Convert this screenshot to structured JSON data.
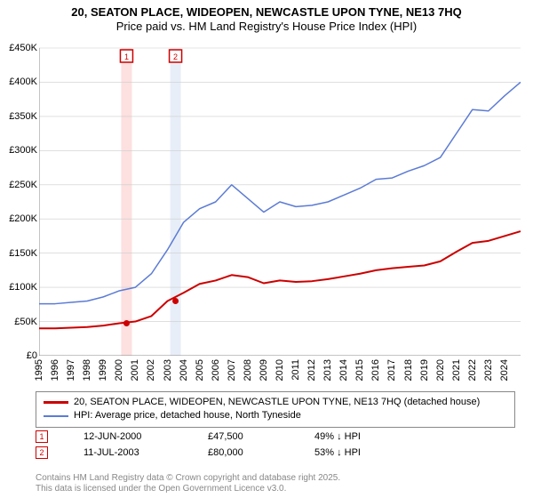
{
  "title_line1": "20, SEATON PLACE, WIDEOPEN, NEWCASTLE UPON TYNE, NE13 7HQ",
  "title_line2": "Price paid vs. HM Land Registry's House Price Index (HPI)",
  "chart": {
    "type": "line",
    "background_color": "#ffffff",
    "grid_color": "#cccccc",
    "axis_color": "#888888",
    "label_fontsize": 11,
    "title_fontsize": 13,
    "xlim": [
      1995,
      2025
    ],
    "ylim": [
      0,
      450000
    ],
    "ytick_step": 50000,
    "yticks": [
      "£0",
      "£50K",
      "£100K",
      "£150K",
      "£200K",
      "£250K",
      "£300K",
      "£350K",
      "£400K",
      "£450K"
    ],
    "xticks": [
      "1995",
      "1996",
      "1997",
      "1998",
      "1999",
      "2000",
      "2001",
      "2002",
      "2003",
      "2004",
      "2005",
      "2006",
      "2007",
      "2008",
      "2009",
      "2010",
      "2011",
      "2012",
      "2013",
      "2014",
      "2015",
      "2016",
      "2017",
      "2018",
      "2019",
      "2020",
      "2021",
      "2022",
      "2023",
      "2024"
    ],
    "series": [
      {
        "name": "property",
        "label": "20, SEATON PLACE, WIDEOPEN, NEWCASTLE UPON TYNE, NE13 7HQ (detached house)",
        "color": "#cc0000",
        "line_width": 2,
        "points": [
          [
            1995,
            40000
          ],
          [
            1996,
            40000
          ],
          [
            1997,
            41000
          ],
          [
            1998,
            42000
          ],
          [
            1999,
            44000
          ],
          [
            2000,
            47500
          ],
          [
            2001,
            50000
          ],
          [
            2002,
            58000
          ],
          [
            2003,
            80000
          ],
          [
            2004,
            92000
          ],
          [
            2005,
            105000
          ],
          [
            2006,
            110000
          ],
          [
            2007,
            118000
          ],
          [
            2008,
            115000
          ],
          [
            2009,
            106000
          ],
          [
            2010,
            110000
          ],
          [
            2011,
            108000
          ],
          [
            2012,
            109000
          ],
          [
            2013,
            112000
          ],
          [
            2014,
            116000
          ],
          [
            2015,
            120000
          ],
          [
            2016,
            125000
          ],
          [
            2017,
            128000
          ],
          [
            2018,
            130000
          ],
          [
            2019,
            132000
          ],
          [
            2020,
            138000
          ],
          [
            2021,
            152000
          ],
          [
            2022,
            165000
          ],
          [
            2023,
            168000
          ],
          [
            2024,
            175000
          ],
          [
            2025,
            182000
          ]
        ]
      },
      {
        "name": "hpi",
        "label": "HPI: Average price, detached house, North Tyneside",
        "color": "#5b7bd5",
        "line_width": 1.5,
        "points": [
          [
            1995,
            76000
          ],
          [
            1996,
            76000
          ],
          [
            1997,
            78000
          ],
          [
            1998,
            80000
          ],
          [
            1999,
            86000
          ],
          [
            2000,
            95000
          ],
          [
            2001,
            100000
          ],
          [
            2002,
            120000
          ],
          [
            2003,
            155000
          ],
          [
            2004,
            195000
          ],
          [
            2005,
            215000
          ],
          [
            2006,
            225000
          ],
          [
            2007,
            250000
          ],
          [
            2008,
            230000
          ],
          [
            2009,
            210000
          ],
          [
            2010,
            225000
          ],
          [
            2011,
            218000
          ],
          [
            2012,
            220000
          ],
          [
            2013,
            225000
          ],
          [
            2014,
            235000
          ],
          [
            2015,
            245000
          ],
          [
            2016,
            258000
          ],
          [
            2017,
            260000
          ],
          [
            2018,
            270000
          ],
          [
            2019,
            278000
          ],
          [
            2020,
            290000
          ],
          [
            2021,
            325000
          ],
          [
            2022,
            360000
          ],
          [
            2023,
            358000
          ],
          [
            2024,
            380000
          ],
          [
            2025,
            400000
          ]
        ]
      }
    ],
    "transaction_markers": [
      {
        "n": "1",
        "x": 2000.45,
        "y": 47500,
        "color": "#cc0000",
        "band_color": "#fde0e0"
      },
      {
        "n": "2",
        "x": 2003.5,
        "y": 80000,
        "color": "#cc0000",
        "band_color": "#e8eef8"
      }
    ]
  },
  "legend": {
    "series1_label": "20, SEATON PLACE, WIDEOPEN, NEWCASTLE UPON TYNE, NE13 7HQ (detached house)",
    "series2_label": "HPI: Average price, detached house, North Tyneside",
    "series1_color": "#cc0000",
    "series2_color": "#5b7bd5"
  },
  "transactions": [
    {
      "n": "1",
      "date": "12-JUN-2000",
      "price": "£47,500",
      "diff": "49% ↓ HPI",
      "color": "#cc0000"
    },
    {
      "n": "2",
      "date": "11-JUL-2003",
      "price": "£80,000",
      "diff": "53% ↓ HPI",
      "color": "#cc0000"
    }
  ],
  "footer_line1": "Contains HM Land Registry data © Crown copyright and database right 2025.",
  "footer_line2": "This data is licensed under the Open Government Licence v3.0."
}
